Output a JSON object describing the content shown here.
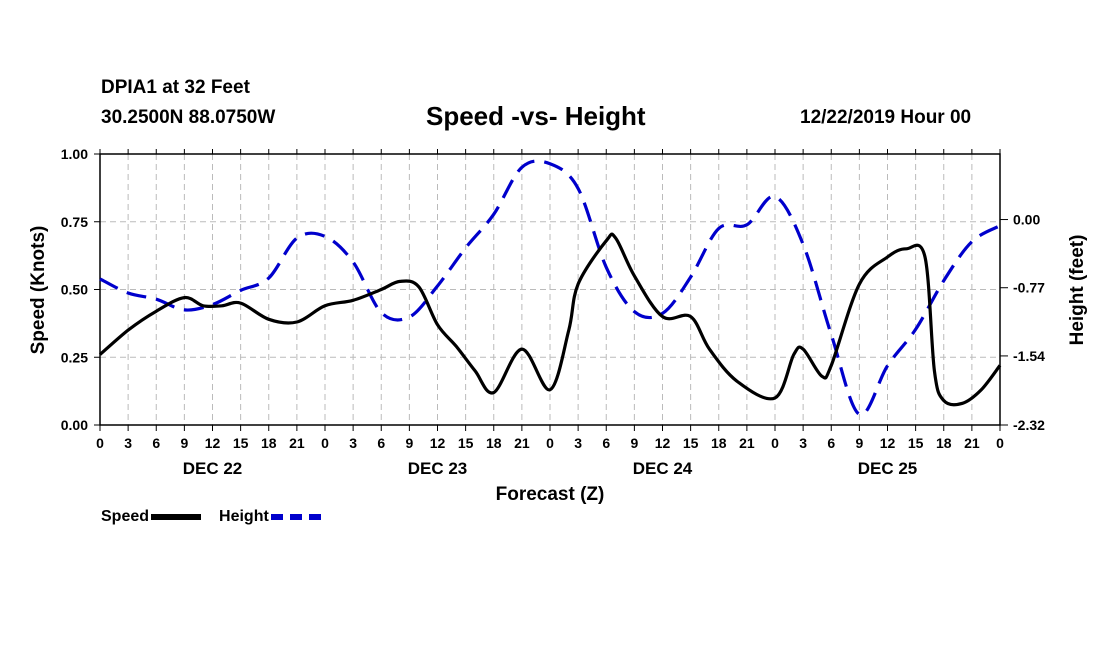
{
  "header": {
    "station": "DPIA1 at 32 Feet",
    "coords": "30.2500N 88.0750W",
    "title": "Speed -vs- Height",
    "run_time": "12/22/2019 Hour 00"
  },
  "legend": {
    "speed": "Speed",
    "height": "Height"
  },
  "colors": {
    "speed": "#000000",
    "height": "#0000cc",
    "grid": "#bbbbbb"
  },
  "chart_data": {
    "type": "line",
    "title": "Speed -vs- Height",
    "xlabel": "Forecast (Z)",
    "ylabel": "Speed (Knots)",
    "y2label": "Height (feet)",
    "xlim": [
      0,
      96
    ],
    "ylim": [
      0,
      1
    ],
    "y2lim": [
      -2.32,
      0.74
    ],
    "x_ticks": [
      0,
      3,
      6,
      9,
      12,
      15,
      18,
      21,
      24,
      27,
      30,
      33,
      36,
      39,
      42,
      45,
      48,
      51,
      54,
      57,
      60,
      63,
      66,
      69,
      72,
      75,
      78,
      81,
      84,
      87,
      90,
      93,
      96
    ],
    "x_tick_labels": [
      "0",
      "3",
      "6",
      "9",
      "12",
      "15",
      "18",
      "21",
      "0",
      "3",
      "6",
      "9",
      "12",
      "15",
      "18",
      "21",
      "0",
      "3",
      "6",
      "9",
      "12",
      "15",
      "18",
      "21",
      "0",
      "3",
      "6",
      "9",
      "12",
      "15",
      "18",
      "21",
      "0"
    ],
    "day_labels": [
      {
        "x": 12,
        "label": "DEC 22"
      },
      {
        "x": 36,
        "label": "DEC 23"
      },
      {
        "x": 60,
        "label": "DEC 24"
      },
      {
        "x": 84,
        "label": "DEC 25"
      }
    ],
    "y_ticks": [
      0.0,
      0.25,
      0.5,
      0.75,
      1.0
    ],
    "y_tick_labels": [
      "0.00",
      "0.25",
      "0.50",
      "0.75",
      "1.00"
    ],
    "y2_ticks": [
      -2.32,
      -1.54,
      -0.77,
      0.0
    ],
    "y2_tick_labels": [
      "-2.32",
      "-1.54",
      "-0.77",
      "0.00"
    ],
    "series": [
      {
        "name": "Speed",
        "axis": "left",
        "style": "solid",
        "x": [
          0,
          3,
          6,
          9,
          11,
          13,
          15,
          18,
          21,
          24,
          27,
          30,
          32,
          34,
          36,
          38,
          40,
          42,
          45,
          48,
          50,
          51,
          54,
          55,
          57,
          60,
          63,
          65,
          68,
          72,
          74,
          75,
          77,
          78,
          81,
          84,
          86,
          88,
          89,
          90,
          92,
          94,
          96
        ],
        "y": [
          0.26,
          0.35,
          0.42,
          0.47,
          0.44,
          0.44,
          0.45,
          0.39,
          0.38,
          0.44,
          0.46,
          0.5,
          0.53,
          0.51,
          0.37,
          0.29,
          0.2,
          0.12,
          0.28,
          0.13,
          0.35,
          0.52,
          0.68,
          0.69,
          0.55,
          0.4,
          0.4,
          0.28,
          0.16,
          0.1,
          0.26,
          0.28,
          0.18,
          0.22,
          0.52,
          0.62,
          0.65,
          0.62,
          0.2,
          0.09,
          0.08,
          0.13,
          0.22
        ]
      },
      {
        "name": "Height",
        "axis": "right",
        "style": "dashed",
        "x": [
          0,
          3,
          6,
          9,
          12,
          15,
          18,
          21,
          24,
          27,
          30,
          33,
          36,
          39,
          42,
          45,
          48,
          51,
          54,
          57,
          60,
          63,
          66,
          69,
          72,
          75,
          78,
          81,
          84,
          87,
          90,
          93,
          96
        ],
        "y": [
          -0.67,
          -0.83,
          -0.9,
          -1.02,
          -0.96,
          -0.8,
          -0.66,
          -0.21,
          -0.19,
          -0.48,
          -1.05,
          -1.1,
          -0.75,
          -0.32,
          0.06,
          0.59,
          0.63,
          0.35,
          -0.54,
          -1.04,
          -1.06,
          -0.65,
          -0.1,
          -0.06,
          0.26,
          -0.28,
          -1.3,
          -2.2,
          -1.65,
          -1.24,
          -0.69,
          -0.25,
          -0.07
        ]
      }
    ]
  }
}
